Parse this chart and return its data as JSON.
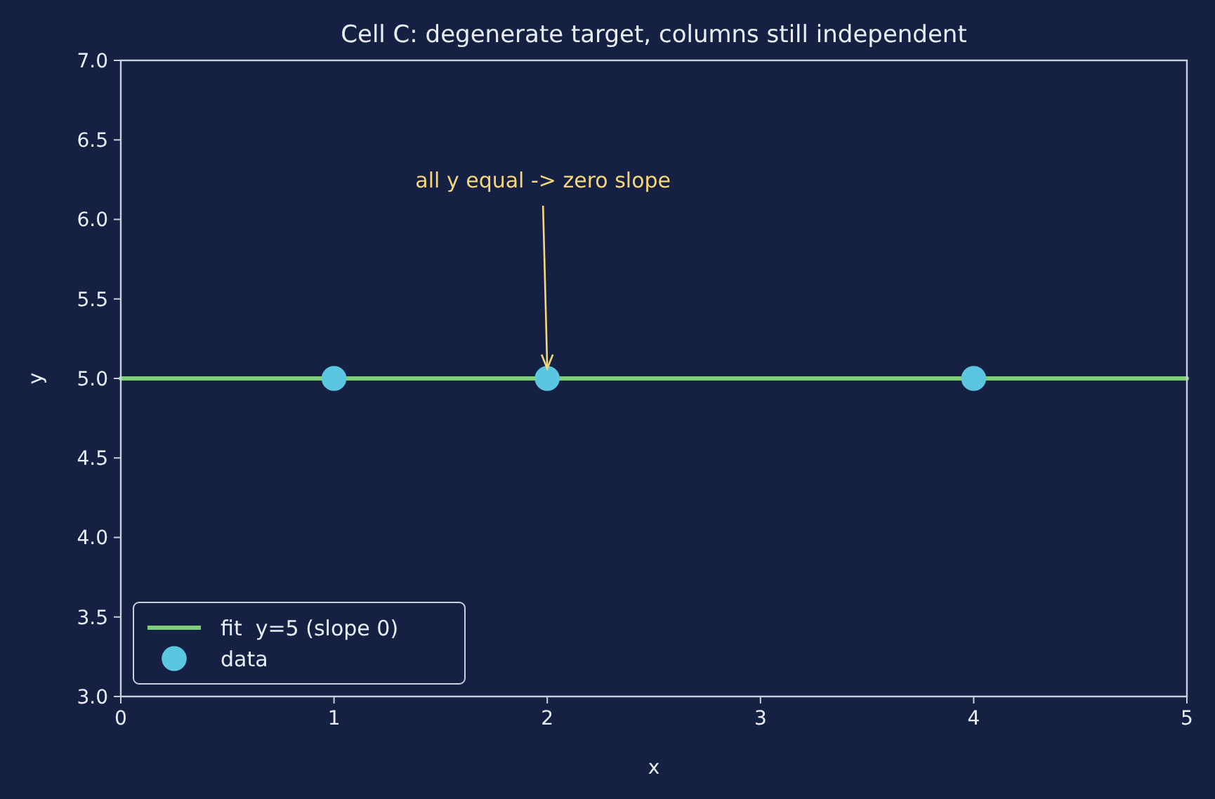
{
  "chart_data": {
    "type": "scatter",
    "title": "Cell C: degenerate target, columns still independent",
    "xlabel": "x",
    "ylabel": "y",
    "xlim": [
      0,
      5
    ],
    "xticks": [
      0,
      1,
      2,
      3,
      4,
      5
    ],
    "ylim": [
      3,
      7
    ],
    "yticks": [
      {
        "value": 3,
        "label": "3.0"
      },
      {
        "value": 3.5,
        "label": "3.5"
      },
      {
        "value": 4,
        "label": "4.0"
      },
      {
        "value": 4.5,
        "label": "4.5"
      },
      {
        "value": 5,
        "label": "5.0"
      },
      {
        "value": 5.5,
        "label": "5.5"
      },
      {
        "value": 6,
        "label": "6.0"
      },
      {
        "value": 6.5,
        "label": "6.5"
      },
      {
        "value": 7,
        "label": "7.0"
      }
    ],
    "series": [
      {
        "name": "fit  y=5 (slope 0)",
        "type": "line",
        "color": "#7fcf7a",
        "x": [
          0,
          5
        ],
        "values": [
          5,
          5
        ],
        "marker": "none",
        "line_style": "solid"
      },
      {
        "name": "data",
        "color": "#5bc6df",
        "x": [
          1,
          2,
          4
        ],
        "values": [
          5,
          5,
          5
        ],
        "marker": "circle"
      }
    ],
    "annotations": [
      {
        "text": "all y equal -> zero slope",
        "x": 2,
        "y": 5
      }
    ],
    "grid": false,
    "legend": "bottom left"
  }
}
